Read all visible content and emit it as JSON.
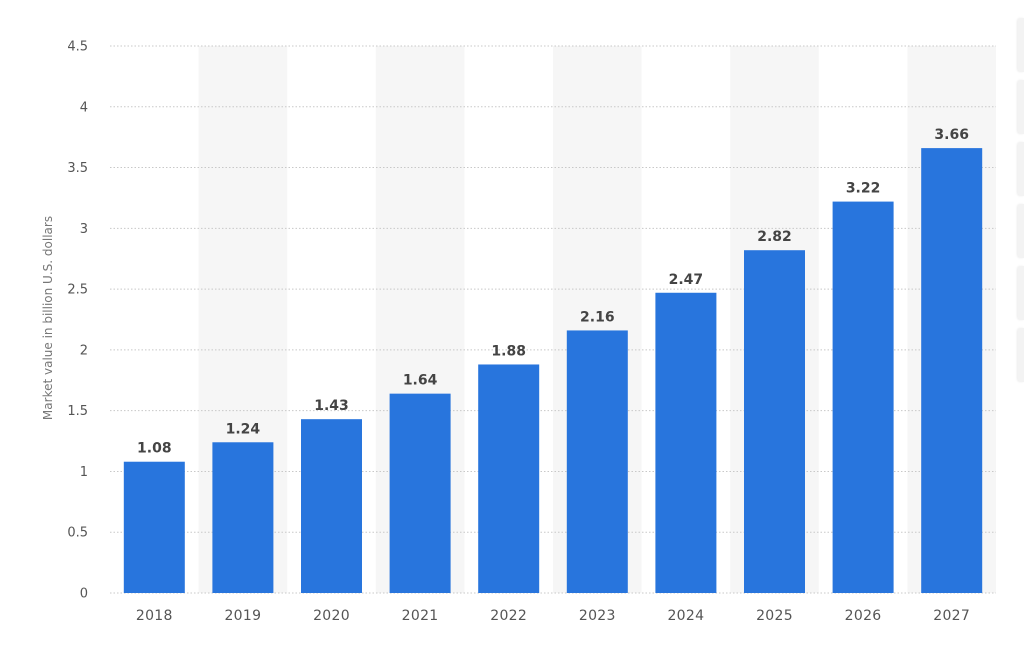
{
  "chart_data": {
    "type": "bar",
    "categories": [
      "2018",
      "2019",
      "2020",
      "2021",
      "2022",
      "2023",
      "2024",
      "2025",
      "2026",
      "2027"
    ],
    "values": [
      1.08,
      1.24,
      1.43,
      1.64,
      1.88,
      2.16,
      2.47,
      2.82,
      3.22,
      3.66
    ],
    "value_labels": [
      "1.08",
      "1.24",
      "1.43",
      "1.64",
      "1.88",
      "2.16",
      "2.47",
      "2.82",
      "3.22",
      "3.66"
    ],
    "title": "",
    "xlabel": "",
    "ylabel": "Market value in billion U.S. dollars",
    "ylim": [
      0,
      4.5
    ],
    "yticks": [
      "0",
      "0.5",
      "1",
      "1.5",
      "2",
      "2.5",
      "3",
      "3.5",
      "4",
      "4.5"
    ],
    "grid": true,
    "legend": "none",
    "colors": {
      "bar": "#2875dd",
      "band": "#f6f6f6",
      "grid": "#c8c8c8"
    }
  }
}
